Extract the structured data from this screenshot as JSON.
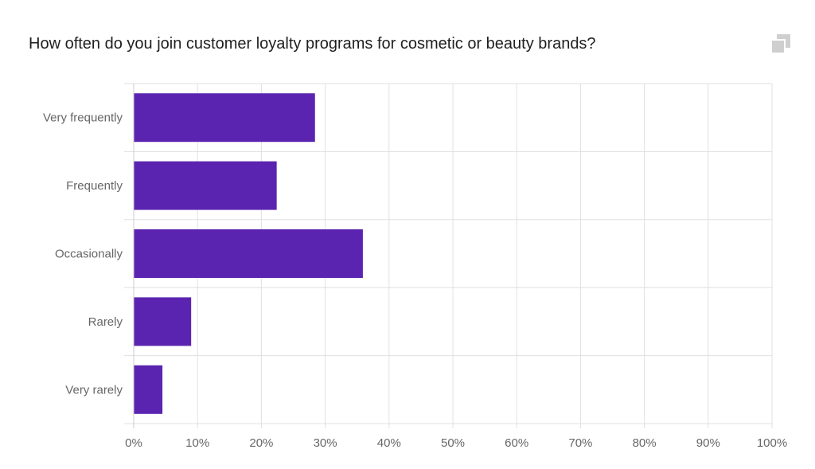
{
  "question_title": "How often do you join customer loyalty programs for cosmetic or beauty brands?",
  "icons": {
    "copy": "copy-icon"
  },
  "colors": {
    "bar": "#5b24b0",
    "grid": "#e0e0e0",
    "axis": "#cccccc",
    "text": "#666666",
    "icon": "#cfcfcf"
  },
  "chart_data": {
    "type": "bar",
    "orientation": "horizontal",
    "title": "How often do you join customer loyalty programs for cosmetic or beauty brands?",
    "categories": [
      "Very frequently",
      "Frequently",
      "Occasionally",
      "Rarely",
      "Very rarely"
    ],
    "values": [
      28.4,
      22.4,
      35.9,
      9.0,
      4.5
    ],
    "x_unit": "%",
    "xlim": [
      0,
      100
    ],
    "x_ticks": [
      "0%",
      "10%",
      "20%",
      "30%",
      "40%",
      "50%",
      "60%",
      "70%",
      "80%",
      "90%",
      "100%"
    ],
    "grid": true,
    "legend": "none"
  }
}
